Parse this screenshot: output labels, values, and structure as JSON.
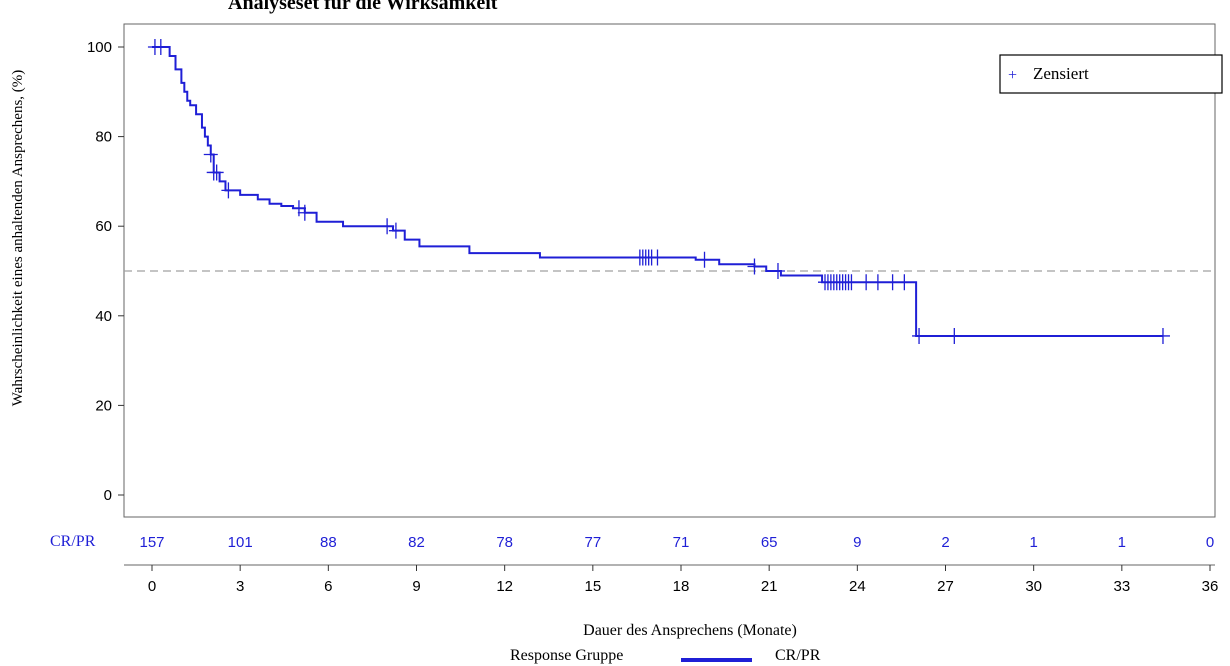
{
  "chart_data": {
    "type": "line",
    "title": "Analyseset für die Wirksamkeit",
    "xlabel": "Dauer des Ansprechens (Monate)",
    "ylabel": "Wahrscheinlichkeit eines anhaltenden Ansprechens, (%)",
    "xlim": [
      0,
      36
    ],
    "ylim": [
      0,
      100
    ],
    "x_ticks": [
      0,
      3,
      6,
      9,
      12,
      15,
      18,
      21,
      24,
      27,
      30,
      33,
      36
    ],
    "y_ticks": [
      0,
      20,
      40,
      60,
      80,
      100
    ],
    "reference_line": {
      "y": 50,
      "style": "dashed",
      "color": "#a0a0a0"
    },
    "legend": {
      "position": "top-right",
      "censored_label": "Zensiert",
      "symbol": "+"
    },
    "bottom_legend": {
      "label": "Response Gruppe",
      "series_label": "CR/PR"
    },
    "series": [
      {
        "name": "CR/PR",
        "color": "#1f1fd6",
        "x": [
          0,
          0.6,
          0.8,
          1.0,
          1.1,
          1.2,
          1.3,
          1.5,
          1.7,
          1.8,
          1.9,
          2.0,
          2.1,
          2.3,
          2.5,
          3.0,
          3.6,
          4.0,
          4.4,
          4.8,
          5.2,
          5.6,
          6.5,
          8.2,
          8.6,
          9.1,
          10.8,
          13.2,
          18.5,
          19.3,
          20.5,
          20.9,
          21.4,
          22.8,
          26.0,
          34.4
        ],
        "y": [
          100,
          98,
          95,
          92,
          90,
          88,
          87,
          85,
          82,
          80,
          78,
          76,
          72,
          70,
          68,
          67,
          66,
          65,
          64.5,
          64,
          63,
          61,
          60,
          59,
          57,
          55.5,
          54,
          53,
          52.5,
          51.5,
          51,
          50,
          49,
          47.5,
          35.5,
          35.5
        ]
      }
    ],
    "censored": [
      0.1,
      0.3,
      2.0,
      2.1,
      2.2,
      2.6,
      5.0,
      5.2,
      8.0,
      8.3,
      16.6,
      16.7,
      16.8,
      16.9,
      17.0,
      17.2,
      18.8,
      20.5,
      21.3,
      22.9,
      23.0,
      23.1,
      23.2,
      23.3,
      23.4,
      23.5,
      23.6,
      23.7,
      23.8,
      24.3,
      24.7,
      25.2,
      25.6,
      26.1,
      27.3,
      34.4
    ],
    "risk_table": {
      "group_label": "CR/PR",
      "times": [
        0,
        3,
        6,
        9,
        12,
        15,
        18,
        21,
        24,
        27,
        30,
        33,
        36
      ],
      "counts": [
        "157",
        "101",
        "88",
        "82",
        "78",
        "77",
        "71",
        "65",
        "9",
        "2",
        "1",
        "1",
        "0"
      ]
    }
  }
}
